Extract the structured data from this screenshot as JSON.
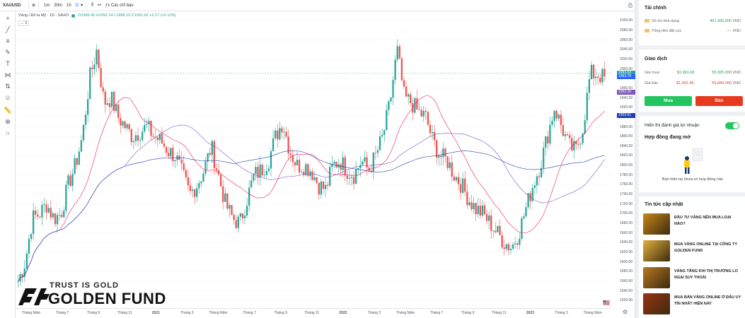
{
  "toolbar": {
    "symbol": "XAUUSD",
    "intervals": [
      "1m",
      "30m",
      "1h",
      "D"
    ],
    "active_interval": "D",
    "indicators_label": "Các chỉ báo"
  },
  "legend": {
    "name": "Vàng / Đô la Mỹ · 1D · SAXO",
    "ohlc": "O1989.45 H1992.24 L1989.19 C1991.62 +2.17 (+0.11%)"
  },
  "indicator_count": "3",
  "price_axis": {
    "ticks": [
      "2100.00",
      "2080.00",
      "2060.00",
      "2040.00",
      "2020.00",
      "2000.00",
      "1980.00",
      "1960.00",
      "1940.00",
      "1920.00",
      "1900.00",
      "1880.00",
      "1860.00",
      "1840.00",
      "1820.00",
      "1800.00",
      "1780.00",
      "1760.00",
      "1740.00",
      "1720.00",
      "1700.00",
      "1680.00",
      "1660.00",
      "1640.00",
      "1620.00",
      "1600.00",
      "1580.00",
      "1560.00",
      "1540.00",
      "1520.00"
    ],
    "tags": [
      {
        "value": "1991.62",
        "color": "#26a69a"
      },
      {
        "value": "1983.78",
        "color": "#2962ff"
      },
      {
        "value": "1952.26",
        "color": "#7e57c2"
      },
      {
        "value": "1903.61",
        "color": "#1e40af"
      }
    ]
  },
  "time_axis": [
    "Tháng Năm",
    "Tháng 7",
    "Tháng 9",
    "Tháng 11",
    "2021",
    "Tháng 3",
    "Tháng Năm",
    "Tháng 7",
    "Tháng 9",
    "Tháng 11",
    "2022",
    "Tháng 3",
    "Tháng Năm",
    "Tháng 7",
    "Tháng 9",
    "Tháng 11",
    "2023",
    "Tháng 3",
    "Tháng Năm"
  ],
  "watermark": {
    "tagline": "TRUST IS GOLD",
    "name": "GOLDEN FUND"
  },
  "finance": {
    "title": "Tài chính",
    "available_label": "Số dư khả dụng",
    "available_value": "401.435.000",
    "available_unit": "VND",
    "deposit_label": "Tổng tiền đặt cọc",
    "deposit_value": "----",
    "deposit_unit": "VND"
  },
  "trade": {
    "title": "Giao dịch",
    "buy_label": "Giá mua",
    "buy_usd": "$1,991.68",
    "buy_vnd": "55,925.000",
    "sell_label": "Giá bán",
    "sell_usd": "$1,991.48",
    "sell_vnd": "55,849.000",
    "unit": "VND",
    "buy_button": "Mua",
    "sell_button": "Bán"
  },
  "profit_toggle_label": "Hiển thị đánh giá lợi nhuận",
  "contracts": {
    "title": "Hợp đồng đang mở",
    "empty": "Bạn hiện tại chưa có hợp đồng nào"
  },
  "news": {
    "title": "Tin tức cập nhật",
    "items": [
      {
        "title": "Đầu tư vàng nên mua loại nào?",
        "color": "#c9871b"
      },
      {
        "title": "Mua vàng online tại công ty Golden Fund",
        "color": "#e3b13b"
      },
      {
        "title": "Vàng tăng khi thị trường lo ngại suy thoái",
        "color": "#b7791f"
      },
      {
        "title": "Mua bán vàng online ở đâu uy tín nhất hiện nay",
        "color": "#9a3412"
      }
    ]
  },
  "chart_data": {
    "type": "candlestick",
    "symbol": "XAUUSD",
    "ylim": [
      1510,
      2105
    ],
    "series_close_approx": [
      1560,
      1600,
      1690,
      1700,
      1720,
      1690,
      1700,
      1760,
      1800,
      1860,
      1980,
      2040,
      1930,
      1940,
      1900,
      1880,
      1860,
      1870,
      1880,
      1860,
      1850,
      1830,
      1820,
      1780,
      1740,
      1760,
      1790,
      1840,
      1780,
      1720,
      1690,
      1680,
      1730,
      1780,
      1790,
      1810,
      1860,
      1890,
      1830,
      1800,
      1800,
      1790,
      1760,
      1750,
      1800,
      1810,
      1790,
      1780,
      1810,
      1790,
      1820,
      1860,
      1930,
      2040,
      1940,
      1930,
      1910,
      1900,
      1850,
      1820,
      1810,
      1780,
      1760,
      1730,
      1710,
      1700,
      1680,
      1660,
      1640,
      1630,
      1660,
      1710,
      1760,
      1800,
      1860,
      1920,
      1880,
      1840,
      1830,
      1880,
      1990,
      1990,
      1980
    ]
  }
}
